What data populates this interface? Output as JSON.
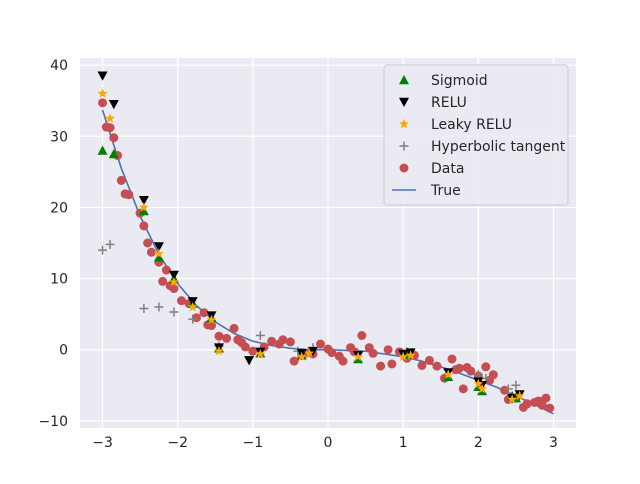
{
  "chart_data": {
    "type": "scatter",
    "title": "",
    "xlabel": "",
    "ylabel": "",
    "xlim": [
      -3.3,
      3.3
    ],
    "ylim": [
      -11,
      41
    ],
    "x_ticks": [
      -3,
      -2,
      -1,
      0,
      1,
      2,
      3
    ],
    "x_tick_labels": [
      "−3",
      "−2",
      "−1",
      "0",
      "1",
      "2",
      "3"
    ],
    "y_ticks": [
      -10,
      0,
      10,
      20,
      30,
      40
    ],
    "y_tick_labels": [
      "−10",
      "0",
      "10",
      "20",
      "30",
      "40"
    ],
    "grid": true,
    "legend_position": "top-right",
    "series": [
      {
        "name": "Sigmoid",
        "marker": "triangle-up",
        "color": "#008000",
        "points": [
          [
            -3.0,
            28.0
          ],
          [
            -2.85,
            27.5
          ],
          [
            -2.45,
            19.5
          ],
          [
            -2.25,
            13.0
          ],
          [
            -2.05,
            10.0
          ],
          [
            -1.8,
            6.5
          ],
          [
            -1.55,
            4.5
          ],
          [
            -1.45,
            0.2
          ],
          [
            -0.9,
            -0.5
          ],
          [
            -0.35,
            -0.8
          ],
          [
            0.4,
            -1.3
          ],
          [
            1.05,
            -0.7
          ],
          [
            1.6,
            -3.8
          ],
          [
            2.0,
            -5.2
          ],
          [
            2.05,
            -5.8
          ],
          [
            2.45,
            -6.5
          ],
          [
            2.5,
            -6.8
          ]
        ]
      },
      {
        "name": "RELU",
        "marker": "triangle-down",
        "color": "#000000",
        "points": [
          [
            -3.0,
            38.5
          ],
          [
            -2.85,
            34.5
          ],
          [
            -2.45,
            21.0
          ],
          [
            -2.25,
            14.5
          ],
          [
            -2.05,
            10.5
          ],
          [
            -1.8,
            6.8
          ],
          [
            -1.55,
            4.8
          ],
          [
            -1.45,
            0.3
          ],
          [
            -1.05,
            -1.5
          ],
          [
            -0.9,
            -0.3
          ],
          [
            -0.35,
            -0.5
          ],
          [
            -0.2,
            -0.2
          ],
          [
            0.4,
            -0.8
          ],
          [
            1.0,
            -0.6
          ],
          [
            1.1,
            -0.4
          ],
          [
            1.6,
            -3.2
          ],
          [
            2.0,
            -4.5
          ],
          [
            2.05,
            -5.0
          ],
          [
            2.45,
            -6.8
          ],
          [
            2.55,
            -6.3
          ]
        ]
      },
      {
        "name": "Leaky RELU",
        "marker": "star",
        "color": "#FFA500",
        "points": [
          [
            -3.0,
            36.0
          ],
          [
            -2.9,
            32.5
          ],
          [
            -2.45,
            20.0
          ],
          [
            -2.25,
            13.5
          ],
          [
            -2.05,
            9.5
          ],
          [
            -1.8,
            6.0
          ],
          [
            -1.55,
            4.2
          ],
          [
            -1.45,
            -0.2
          ],
          [
            -0.9,
            -0.6
          ],
          [
            -0.35,
            -1.0
          ],
          [
            -0.25,
            -0.5
          ],
          [
            0.4,
            -1.0
          ],
          [
            1.0,
            -1.0
          ],
          [
            1.1,
            -0.8
          ],
          [
            1.6,
            -3.5
          ],
          [
            2.0,
            -4.8
          ],
          [
            2.05,
            -5.5
          ],
          [
            2.45,
            -7.0
          ],
          [
            2.55,
            -6.5
          ]
        ]
      },
      {
        "name": "Hyperbolic tangent",
        "marker": "plus",
        "color": "#808080",
        "points": [
          [
            -3.0,
            14.0
          ],
          [
            -2.9,
            14.8
          ],
          [
            -2.45,
            5.8
          ],
          [
            -2.25,
            6.0
          ],
          [
            -2.05,
            5.3
          ],
          [
            -1.8,
            4.3
          ],
          [
            -1.45,
            0.5
          ],
          [
            -0.9,
            2.0
          ],
          [
            -0.4,
            -0.2
          ],
          [
            -0.2,
            0.3
          ],
          [
            0.4,
            -0.5
          ],
          [
            1.05,
            -0.3
          ],
          [
            2.0,
            -3.5
          ],
          [
            2.1,
            -4.0
          ],
          [
            2.4,
            -5.5
          ],
          [
            2.5,
            -5.0
          ]
        ]
      },
      {
        "name": "Data",
        "marker": "circle",
        "color": "#C44E52",
        "points": [
          [
            -3.0,
            34.7
          ],
          [
            -2.95,
            31.3
          ],
          [
            -2.9,
            31.2
          ],
          [
            -2.85,
            29.8
          ],
          [
            -2.8,
            27.3
          ],
          [
            -2.75,
            23.8
          ],
          [
            -2.7,
            21.9
          ],
          [
            -2.65,
            21.8
          ],
          [
            -2.5,
            19.2
          ],
          [
            -2.45,
            17.4
          ],
          [
            -2.4,
            15.0
          ],
          [
            -2.35,
            13.7
          ],
          [
            -2.25,
            12.3
          ],
          [
            -2.2,
            9.6
          ],
          [
            -2.15,
            11.2
          ],
          [
            -2.1,
            9.0
          ],
          [
            -2.05,
            8.6
          ],
          [
            -1.95,
            6.9
          ],
          [
            -1.85,
            6.5
          ],
          [
            -1.75,
            4.5
          ],
          [
            -1.65,
            5.2
          ],
          [
            -1.6,
            3.5
          ],
          [
            -1.55,
            3.4
          ],
          [
            -1.45,
            1.9
          ],
          [
            -1.35,
            1.6
          ],
          [
            -1.25,
            3.0
          ],
          [
            -1.2,
            1.4
          ],
          [
            -1.15,
            1.0
          ],
          [
            -1.1,
            0.4
          ],
          [
            -1.0,
            -0.2
          ],
          [
            -0.85,
            0.4
          ],
          [
            -0.75,
            1.2
          ],
          [
            -0.65,
            0.8
          ],
          [
            -0.6,
            1.4
          ],
          [
            -0.5,
            1.1
          ],
          [
            -0.45,
            -1.6
          ],
          [
            -0.35,
            -0.8
          ],
          [
            -0.3,
            -0.5
          ],
          [
            -0.2,
            -0.6
          ],
          [
            -0.1,
            0.8
          ],
          [
            0.0,
            0.1
          ],
          [
            0.05,
            -0.4
          ],
          [
            0.15,
            -0.9
          ],
          [
            0.2,
            -1.6
          ],
          [
            0.3,
            0.3
          ],
          [
            0.35,
            -0.3
          ],
          [
            0.45,
            2.0
          ],
          [
            0.55,
            0.3
          ],
          [
            0.6,
            -0.5
          ],
          [
            0.7,
            -2.3
          ],
          [
            0.8,
            0.0
          ],
          [
            0.85,
            -2.0
          ],
          [
            0.95,
            -0.3
          ],
          [
            1.05,
            -1.2
          ],
          [
            1.15,
            -0.8
          ],
          [
            1.25,
            -2.2
          ],
          [
            1.35,
            -1.5
          ],
          [
            1.45,
            -2.3
          ],
          [
            1.55,
            -4.0
          ],
          [
            1.65,
            -1.3
          ],
          [
            1.7,
            -2.8
          ],
          [
            1.75,
            -2.6
          ],
          [
            1.8,
            -5.5
          ],
          [
            1.85,
            -2.5
          ],
          [
            1.9,
            -3.0
          ],
          [
            2.0,
            -3.7
          ],
          [
            2.1,
            -2.4
          ],
          [
            2.15,
            -4.3
          ],
          [
            2.2,
            -3.5
          ],
          [
            2.35,
            -5.7
          ],
          [
            2.4,
            -7.0
          ],
          [
            2.5,
            -6.8
          ],
          [
            2.6,
            -8.1
          ],
          [
            2.65,
            -7.6
          ],
          [
            2.75,
            -7.4
          ],
          [
            2.8,
            -7.2
          ],
          [
            2.85,
            -7.8
          ],
          [
            2.9,
            -6.8
          ],
          [
            2.95,
            -8.2
          ]
        ]
      }
    ],
    "lines": [
      {
        "name": "True",
        "color": "#4C72B0",
        "x": [
          -3.0,
          -2.75,
          -2.5,
          -2.25,
          -2.0,
          -1.75,
          -1.5,
          -1.25,
          -1.0,
          -0.75,
          -0.5,
          -0.25,
          0.0,
          0.25,
          0.5,
          0.75,
          1.0,
          1.25,
          1.5,
          1.75,
          2.0,
          2.25,
          2.5,
          2.75,
          3.0
        ],
        "y": [
          33.7,
          25.5,
          18.8,
          13.4,
          9.3,
          6.2,
          3.9,
          2.3,
          1.2,
          0.6,
          0.2,
          0.0,
          0.0,
          -0.1,
          -0.2,
          -0.6,
          -1.0,
          -1.6,
          -2.4,
          -3.3,
          -4.3,
          -5.3,
          -6.5,
          -7.7,
          -9.0
        ]
      }
    ]
  }
}
